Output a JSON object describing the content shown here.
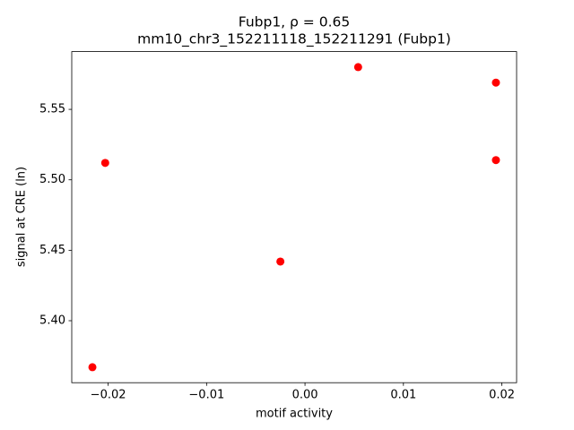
{
  "chart_data": {
    "type": "scatter",
    "title": "Fubp1, ρ = 0.65",
    "subtitle": "mm10_chr3_152211118_152211291 (Fubp1)",
    "x_label": "motif activity",
    "y_label": "signal at CRE (ln)",
    "color": "#ff0000",
    "x": [
      -0.0216,
      -0.0203,
      -0.0025,
      0.0054,
      0.0194,
      0.0194
    ],
    "values": [
      5.367,
      5.512,
      5.442,
      5.58,
      5.569,
      5.514
    ],
    "xlim": [
      -0.0237,
      0.0215
    ],
    "ylim": [
      5.356,
      5.591
    ],
    "xticks": [
      {
        "value": -0.02,
        "label": "−0.02"
      },
      {
        "value": -0.01,
        "label": "−0.01"
      },
      {
        "value": 0,
        "label": "0.00"
      },
      0.01,
      0.02
    ],
    "yticks": [
      {
        "value": 5.4,
        "label": "5.40"
      },
      5.45,
      {
        "value": 5.5,
        "label": "5.50"
      },
      5.55
    ]
  }
}
